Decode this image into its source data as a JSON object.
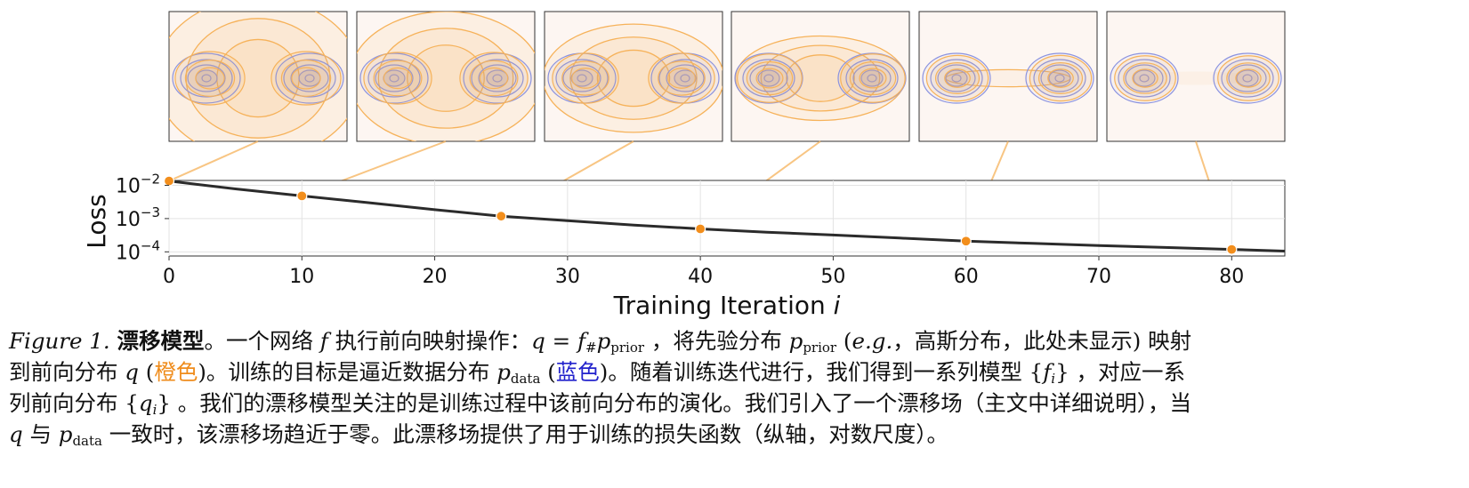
{
  "chart_data": {
    "type": "line",
    "series": [
      {
        "x": [
          0,
          2,
          5,
          10,
          15,
          20,
          25,
          30,
          35,
          40,
          45,
          50,
          55,
          60,
          65,
          70,
          75,
          80,
          84
        ],
        "y": [
          0.0135,
          0.0108,
          0.0078,
          0.0048,
          0.003,
          0.00185,
          0.00118,
          0.00086,
          0.00064,
          0.00049,
          0.00039,
          0.00032,
          0.00026,
          0.00021,
          0.00018,
          0.000155,
          0.000135,
          0.000118,
          0.000105
        ]
      }
    ],
    "highlight_points": {
      "x": [
        0,
        10,
        25,
        40,
        60,
        80
      ],
      "y": [
        0.0135,
        0.0048,
        0.00118,
        0.00049,
        0.00021,
        0.000118
      ]
    },
    "xlabel": "Training Iteration",
    "xlabel_var": "i",
    "ylabel": "Loss",
    "xlim": [
      0,
      84
    ],
    "ylim": [
      7.5e-05,
      0.014
    ],
    "yscale": "log",
    "x_ticks": [
      "0",
      "10",
      "20",
      "30",
      "40",
      "50",
      "60",
      "70",
      "80"
    ],
    "x_tick_values": [
      0,
      10,
      20,
      30,
      40,
      50,
      60,
      70,
      80
    ],
    "y_ticks": [
      {
        "base": "10",
        "exp": "−2",
        "value": 0.01
      },
      {
        "base": "10",
        "exp": "−3",
        "value": 0.001
      },
      {
        "base": "10",
        "exp": "−4",
        "value": 0.0001
      }
    ],
    "grid": true,
    "colors": {
      "curve": "#2b2b2b",
      "points": "#f28e1c",
      "orange": "#f6b25a",
      "blue": "#8a92e0",
      "panel_bg": "#fdf6f2"
    },
    "panels": [
      {
        "iteration": 0,
        "spread": 1.0
      },
      {
        "iteration": 10,
        "spread": 0.8
      },
      {
        "iteration": 25,
        "spread": 0.62
      },
      {
        "iteration": 40,
        "spread": 0.45
      },
      {
        "iteration": 60,
        "spread": 0.12
      },
      {
        "iteration": 80,
        "spread": 0.05
      }
    ]
  },
  "caption": {
    "figure_label": "Figure 1.",
    "title": "漂移模型",
    "l1_a": "。一个网络 ",
    "l1_f": "f",
    "l1_b": " 执行前向映射操作：",
    "l1_q": "q",
    "l1_eq": " = ",
    "l1_f2": "f",
    "l1_hash": "#",
    "l1_p": "p",
    "l1_sub_prior": "prior",
    "l1_c": " ，将先验分布 ",
    "l1_p2": "p",
    "l1_sub_prior2": "prior",
    "l1_d": " (",
    "l1_eg": "e.g.",
    "l1_e": "，高斯分布，此处未显示) 映射",
    "l2_a": "到前向分布 ",
    "l2_q": "q",
    "l2_b": " (",
    "l2_orange": "橙色",
    "l2_c": ")。训练的目标是逼近数据分布 ",
    "l2_p": "p",
    "l2_sub_data": "data",
    "l2_d": " (",
    "l2_blue": "蓝色",
    "l2_e": ")。随着训练迭代进行，我们得到一系列模型 {",
    "l2_fi": "f",
    "l2_fi_sub": "i",
    "l2_f": "} ，对应一系",
    "l3_a": "列前向分布 {",
    "l3_qi": "q",
    "l3_qi_sub": "i",
    "l3_b": "} 。我们的漂移模型关注的是训练过程中该前向分布的演化。我们引入了一个漂移场（主文中详细说明），当",
    "l4_q": "q",
    "l4_a": " 与 ",
    "l4_p": "p",
    "l4_sub_data": "data",
    "l4_b": " 一致时，该漂移场趋近于零。此漂移场提供了用于训练的损失函数（纵轴，对数尺度）。"
  }
}
